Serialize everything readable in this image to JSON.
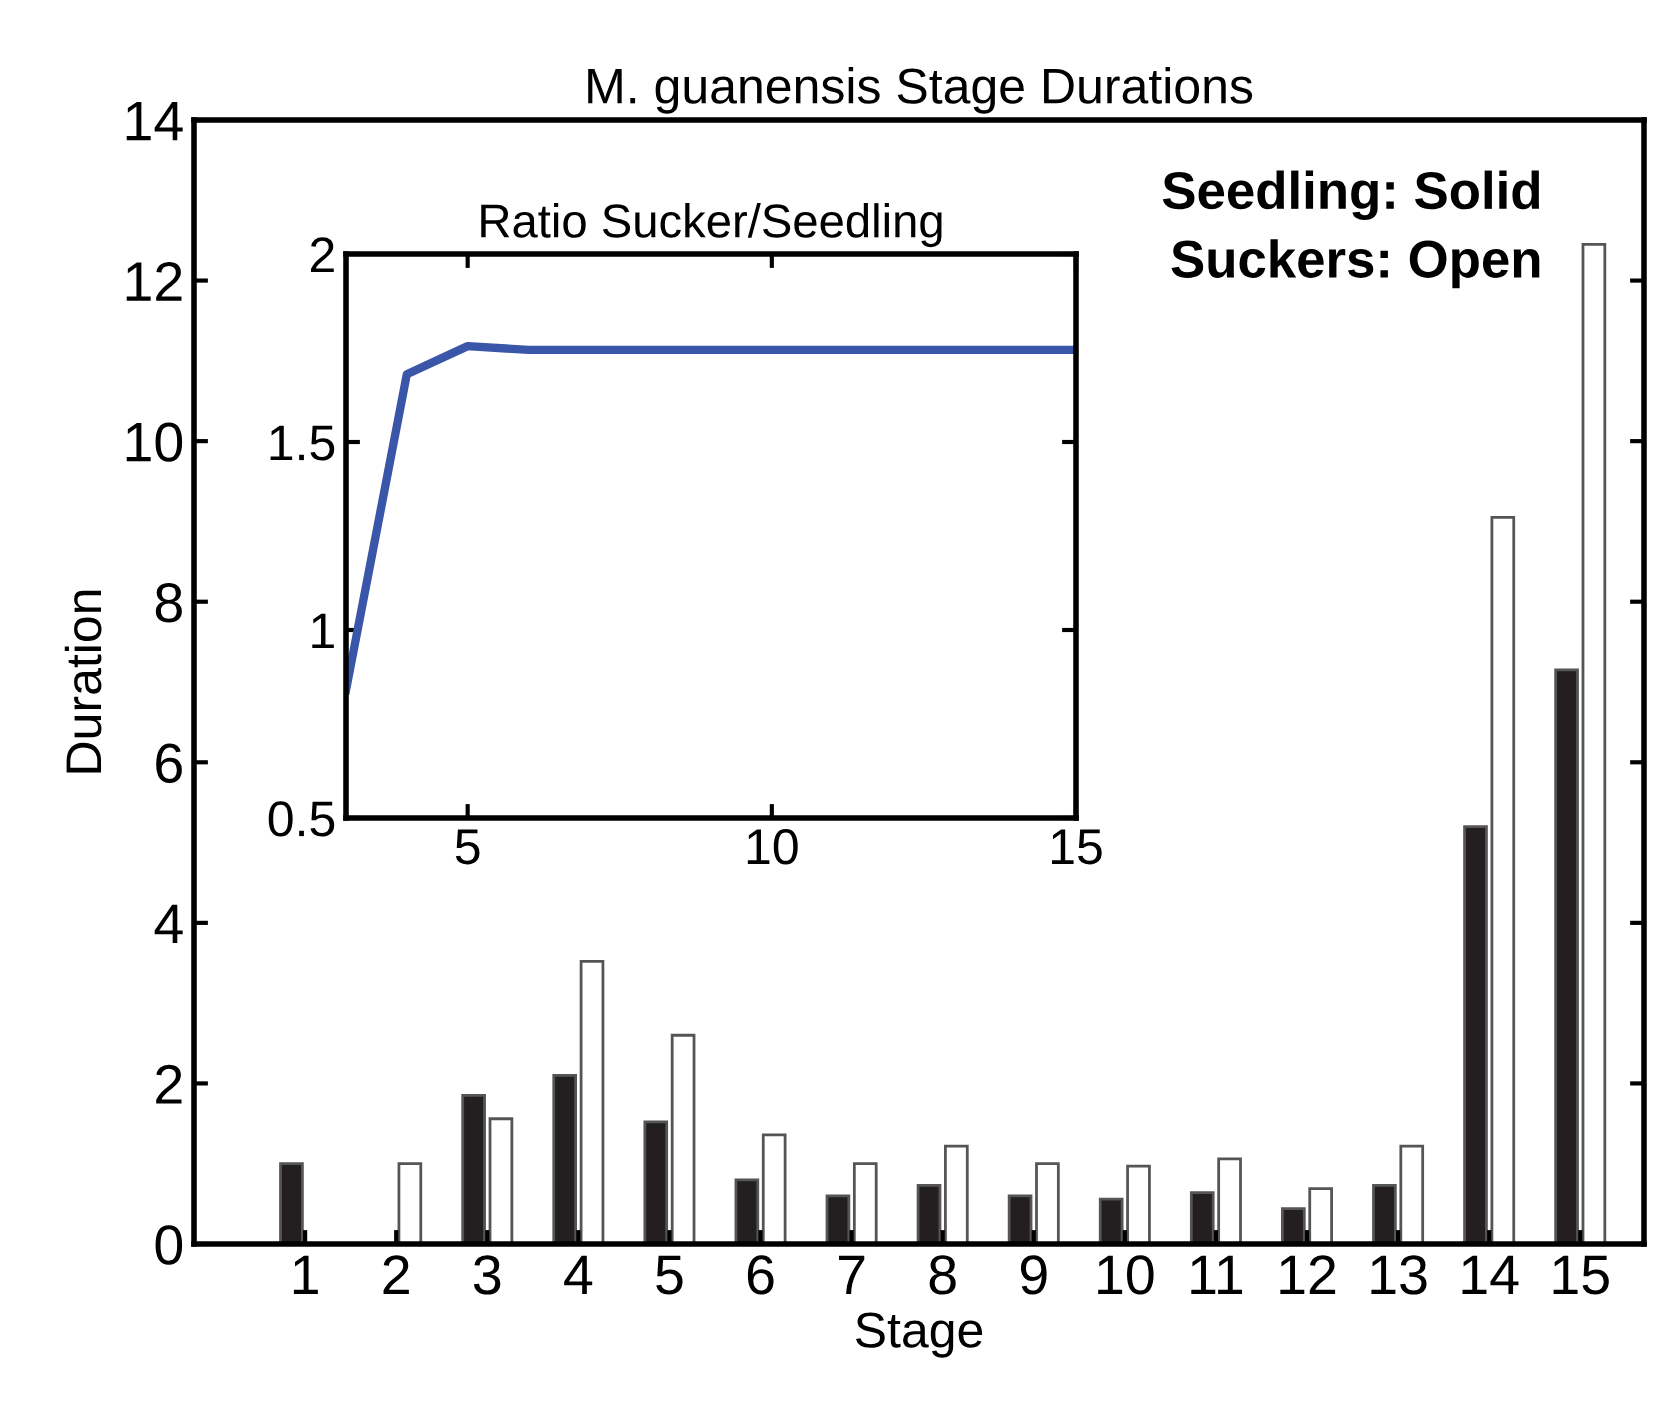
{
  "chart_data": [
    {
      "type": "bar",
      "title": "M. guanensis Stage Durations",
      "xlabel": "Stage",
      "ylabel": "Duration",
      "categories": [
        "1",
        "2",
        "3",
        "4",
        "5",
        "6",
        "7",
        "8",
        "9",
        "10",
        "11",
        "12",
        "13",
        "14",
        "15"
      ],
      "series": [
        {
          "color": "#231f20",
          "values": [
            1.0,
            null,
            1.85,
            2.1,
            1.52,
            0.8,
            0.6,
            0.73,
            0.6,
            0.56,
            0.64,
            0.44,
            0.73,
            5.2,
            7.15
          ]
        },
        {
          "color": "#ffffff",
          "values": [
            null,
            1.0,
            1.56,
            3.52,
            2.6,
            1.36,
            1.0,
            1.22,
            1.0,
            0.97,
            1.06,
            0.69,
            1.22,
            9.05,
            12.45
          ]
        }
      ],
      "ylim": [
        0,
        14
      ],
      "yticks": [
        0,
        2,
        4,
        6,
        8,
        10,
        12,
        14
      ],
      "annotations": [
        "Seedling: Solid\nSuckers: Open"
      ]
    },
    {
      "type": "line",
      "title": "Ratio Sucker/Seedling",
      "x": [
        3,
        4,
        5,
        6,
        7,
        8,
        9,
        10,
        11,
        12,
        13,
        14,
        15
      ],
      "series": [
        {
          "color": "#3a56a8",
          "values": [
            0.84,
            1.68,
            1.755,
            1.745,
            1.745,
            1.745,
            1.745,
            1.745,
            1.745,
            1.745,
            1.745,
            1.745,
            1.745
          ]
        }
      ],
      "xlim": [
        3,
        15
      ],
      "xticks": [
        5,
        10,
        15
      ],
      "ylim": [
        0.5,
        2
      ],
      "yticks": [
        0.5,
        1,
        1.5,
        2
      ]
    }
  ]
}
